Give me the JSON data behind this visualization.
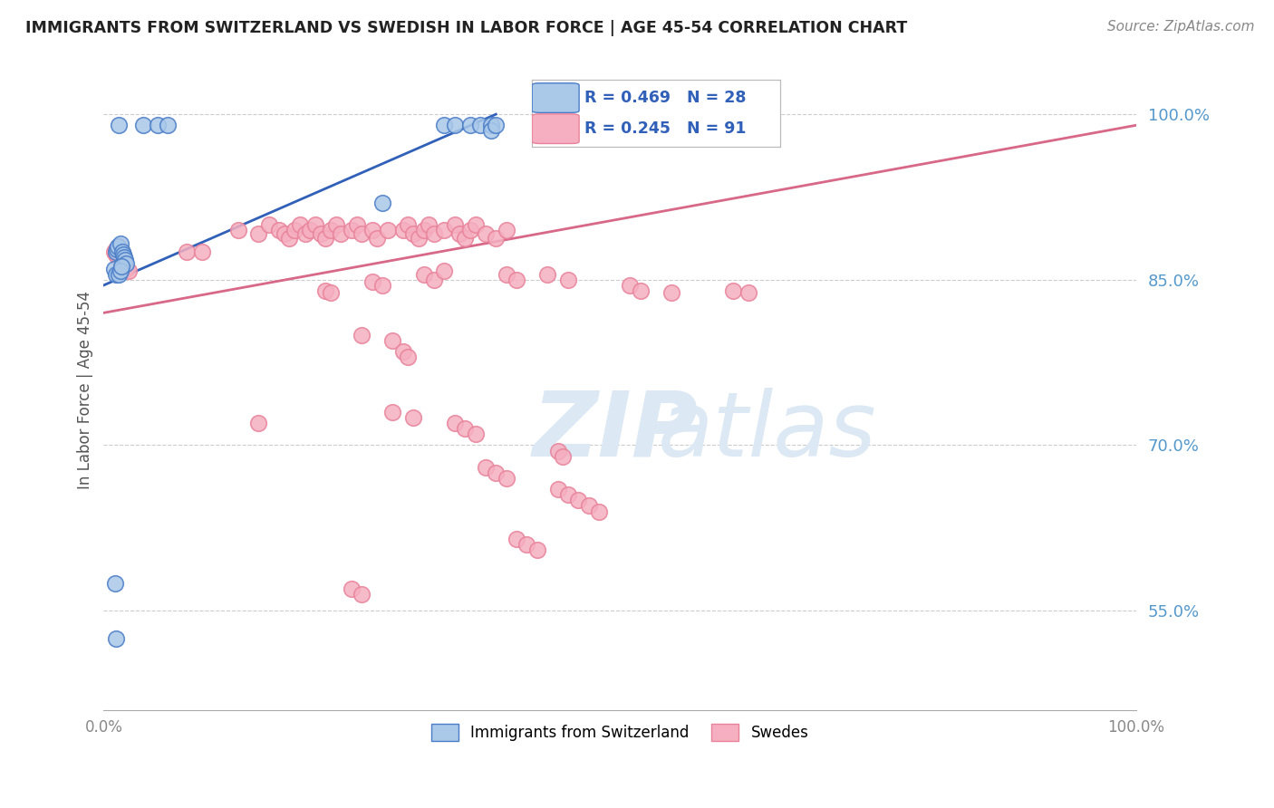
{
  "title": "IMMIGRANTS FROM SWITZERLAND VS SWEDISH IN LABOR FORCE | AGE 45-54 CORRELATION CHART",
  "source": "Source: ZipAtlas.com",
  "ylabel": "In Labor Force | Age 45-54",
  "yticks": [
    0.55,
    0.7,
    0.85,
    1.0
  ],
  "ytick_labels": [
    "55.0%",
    "70.0%",
    "85.0%",
    "100.0%"
  ],
  "xtick_labels": [
    "0.0%",
    "100.0%"
  ],
  "xticks": [
    0.0,
    1.0
  ],
  "xmin": 0.0,
  "xmax": 1.0,
  "ymin": 0.46,
  "ymax": 1.04,
  "legend_swiss": "R = 0.469   N = 28",
  "legend_swedes": "R = 0.245   N = 91",
  "legend_bottom_swiss": "Immigrants from Switzerland",
  "legend_bottom_swedes": "Swedes",
  "swiss_color": "#aac8e8",
  "swedes_color": "#f5afc0",
  "swiss_edge_color": "#4a7dc8",
  "swedes_edge_color": "#e8829a",
  "swiss_line_color": "#3060b8",
  "swedes_line_color": "#d86888",
  "background_color": "#ffffff",
  "grid_color": "#cccccc",
  "tick_color": "#5599cc",
  "title_color": "#222222",
  "source_color": "#888888",
  "ylabel_color": "#555555",
  "watermark_zip_color": "#dce8f4",
  "watermark_atlas_color": "#dce8f4",
  "swiss_x": [
    0.015,
    0.038,
    0.052,
    0.062,
    0.012,
    0.013,
    0.014,
    0.016,
    0.018,
    0.019,
    0.02,
    0.021,
    0.022,
    0.01,
    0.012,
    0.015,
    0.016,
    0.017,
    0.011,
    0.012,
    0.27,
    0.33,
    0.34,
    0.355,
    0.365,
    0.375,
    0.375,
    0.38
  ],
  "swiss_y": [
    0.99,
    0.99,
    0.99,
    0.99,
    0.875,
    0.878,
    0.88,
    0.883,
    0.875,
    0.873,
    0.87,
    0.868,
    0.865,
    0.86,
    0.855,
    0.855,
    0.858,
    0.862,
    0.575,
    0.525,
    0.92,
    0.99,
    0.99,
    0.99,
    0.99,
    0.99,
    0.985,
    0.99
  ],
  "swedes_x": [
    0.01,
    0.012,
    0.014,
    0.016,
    0.018,
    0.02,
    0.022,
    0.024,
    0.012,
    0.015,
    0.08,
    0.095,
    0.13,
    0.15,
    0.16,
    0.17,
    0.175,
    0.18,
    0.185,
    0.19,
    0.195,
    0.2,
    0.205,
    0.21,
    0.215,
    0.22,
    0.225,
    0.23,
    0.24,
    0.245,
    0.25,
    0.26,
    0.265,
    0.275,
    0.29,
    0.295,
    0.3,
    0.305,
    0.31,
    0.315,
    0.32,
    0.33,
    0.34,
    0.345,
    0.35,
    0.355,
    0.36,
    0.37,
    0.38,
    0.39,
    0.31,
    0.32,
    0.33,
    0.26,
    0.27,
    0.215,
    0.22,
    0.39,
    0.4,
    0.43,
    0.45,
    0.51,
    0.52,
    0.61,
    0.625,
    0.55,
    0.25,
    0.28,
    0.29,
    0.295,
    0.15,
    0.28,
    0.3,
    0.34,
    0.35,
    0.36,
    0.44,
    0.445,
    0.37,
    0.38,
    0.39,
    0.44,
    0.45,
    0.46,
    0.47,
    0.48,
    0.4,
    0.41,
    0.42,
    0.24,
    0.25
  ],
  "swedes_y": [
    0.875,
    0.873,
    0.87,
    0.868,
    0.865,
    0.863,
    0.86,
    0.858,
    0.878,
    0.88,
    0.875,
    0.875,
    0.895,
    0.892,
    0.9,
    0.895,
    0.892,
    0.888,
    0.895,
    0.9,
    0.892,
    0.895,
    0.9,
    0.892,
    0.888,
    0.895,
    0.9,
    0.892,
    0.895,
    0.9,
    0.892,
    0.895,
    0.888,
    0.895,
    0.895,
    0.9,
    0.892,
    0.888,
    0.895,
    0.9,
    0.892,
    0.895,
    0.9,
    0.892,
    0.888,
    0.895,
    0.9,
    0.892,
    0.888,
    0.895,
    0.855,
    0.85,
    0.858,
    0.848,
    0.845,
    0.84,
    0.838,
    0.855,
    0.85,
    0.855,
    0.85,
    0.845,
    0.84,
    0.84,
    0.838,
    0.838,
    0.8,
    0.795,
    0.785,
    0.78,
    0.72,
    0.73,
    0.725,
    0.72,
    0.715,
    0.71,
    0.695,
    0.69,
    0.68,
    0.675,
    0.67,
    0.66,
    0.655,
    0.65,
    0.645,
    0.64,
    0.615,
    0.61,
    0.605,
    0.57,
    0.565
  ],
  "swiss_trend_x": [
    0.0,
    0.38
  ],
  "swiss_trend_y": [
    0.845,
    1.0
  ],
  "swedes_trend_x": [
    0.0,
    1.0
  ],
  "swedes_trend_y": [
    0.82,
    0.99
  ]
}
